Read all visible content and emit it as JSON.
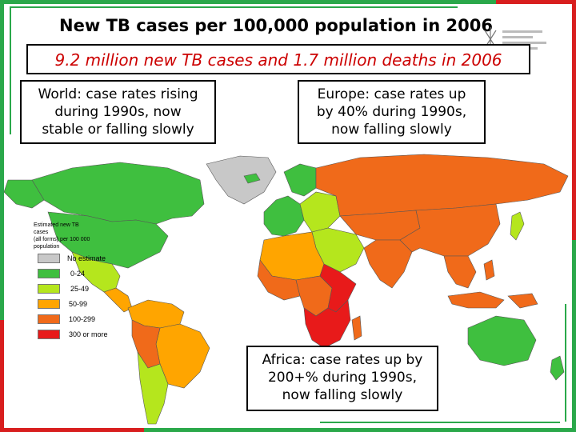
{
  "title": "New TB cases per 100,000 population in 2006",
  "subtitle": "9.2 million new TB cases and 1.7 million deaths in 2006",
  "callouts": {
    "world": [
      "World: case rates rising",
      "during 1990s, now",
      "stable or falling slowly"
    ],
    "europe": [
      "Europe: case rates up",
      "by 40% during 1990s,",
      "now falling slowly"
    ],
    "africa": [
      "Africa: case rates up by",
      "200+% during 1990s,",
      "now falling slowly"
    ]
  },
  "legend": {
    "title": [
      "Estimated new TB",
      "cases",
      "(all forms) per 100 000",
      "population"
    ],
    "items": [
      {
        "label": "No estimate",
        "color": "#c8c8c8"
      },
      {
        "label": "0-24",
        "color": "#3fbf3f"
      },
      {
        "label": "25-49",
        "color": "#b5e61d"
      },
      {
        "label": "50-99",
        "color": "#ffa500"
      },
      {
        "label": "100-299",
        "color": "#f06a1a"
      },
      {
        "label": "300 or more",
        "color": "#e81a1a"
      }
    ]
  },
  "colors": {
    "green_dark": "#3fbf3f",
    "green_light": "#b5e61d",
    "orange_light": "#ffa500",
    "orange": "#f06a1a",
    "red": "#e81a1a",
    "grey": "#c8c8c8",
    "ocean": "#ffffff",
    "frame_green": "#2aa84a",
    "frame_red": "#d81e1e"
  },
  "regions": {
    "canada": "green_dark",
    "usa": "green_dark",
    "greenland": "grey",
    "mexico": "green_light",
    "central_america": "orange_light",
    "south_america_north": "orange_light",
    "brazil": "orange_light",
    "peru_bolivia": "orange",
    "chile_argentina": "green_light",
    "western_europe": "green_dark",
    "eastern_europe": "green_light",
    "russia": "orange",
    "north_africa": "orange_light",
    "west_africa": "orange",
    "central_africa": "orange",
    "east_africa": "red",
    "southern_africa": "red",
    "middle_east": "green_light",
    "central_asia": "orange",
    "south_asia": "orange",
    "china": "orange",
    "southeast_asia": "orange",
    "indonesia": "orange",
    "japan": "green_light",
    "australia": "green_dark",
    "new_zealand": "green_dark",
    "madagascar": "orange",
    "philippines": "orange",
    "papua": "orange"
  }
}
